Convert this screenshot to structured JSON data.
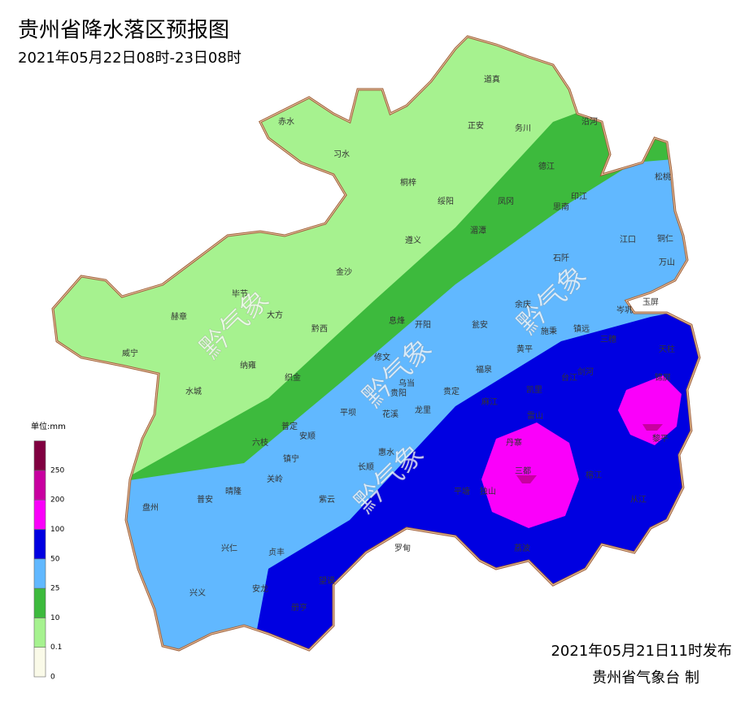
{
  "title": "贵州省降水落区预报图",
  "subtitle": "2021年05月22日08时-23日08时",
  "watermark": "黔气象",
  "legend": {
    "unit": "单位:mm",
    "ticks": [
      0,
      0.1,
      10,
      25,
      50,
      100,
      200,
      250
    ],
    "colors": [
      "#fafae8",
      "#a6f28f",
      "#3dba3d",
      "#61b8ff",
      "#0000e1",
      "#fa00fa",
      "#c800a0",
      "#800040"
    ]
  },
  "counties": [
    "道真",
    "赤水",
    "正安",
    "务川",
    "沿河",
    "习水",
    "德江",
    "桐梓",
    "绥阳",
    "凤冈",
    "印江",
    "思南",
    "松桃",
    "湄潭",
    "遵义",
    "江口",
    "铜仁",
    "石阡",
    "万山",
    "金沙",
    "毕节",
    "大方",
    "赫章",
    "余庆",
    "玉屏",
    "岑巩",
    "息烽",
    "开阳",
    "瓮安",
    "施秉",
    "镇远",
    "黔西",
    "三穗",
    "天柱",
    "威宁",
    "修文",
    "黄平",
    "纳雍",
    "台江",
    "剑河",
    "福泉",
    "织金",
    "乌当",
    "水城",
    "贵阳",
    "贵定",
    "凯里",
    "麻江",
    "锦屏",
    "平坝",
    "花溪",
    "龙里",
    "雷山",
    "普定",
    "安顺",
    "六枝",
    "丹寨",
    "黎平",
    "惠水",
    "镇宁",
    "长顺",
    "三都",
    "榕江",
    "关岭",
    "晴隆",
    "盘州",
    "普安",
    "平塘",
    "独山",
    "紫云",
    "从江",
    "兴仁",
    "贞丰",
    "罗甸",
    "荔波",
    "望谟",
    "兴义",
    "安龙",
    "册亨"
  ],
  "footer": {
    "issued": "2021年05月21日11时发布",
    "agency": "贵州省气象台 制"
  }
}
